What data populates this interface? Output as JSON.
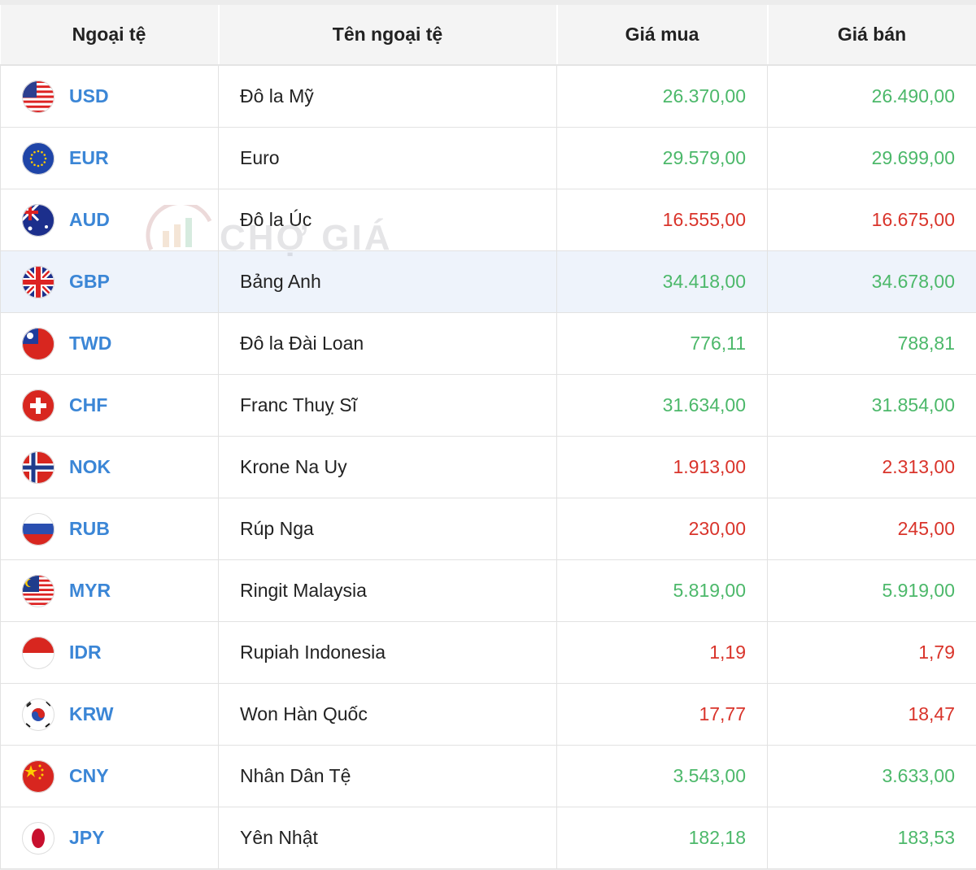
{
  "table": {
    "header": [
      "Ngoại tệ",
      "Tên ngoại tệ",
      "Giá mua",
      "Giá bán"
    ],
    "rows": [
      [
        "USD",
        "Đô la Mỹ",
        "26.370,00",
        "26.490,00"
      ],
      [
        "EUR",
        "Euro",
        "29.579,00",
        "29.699,00"
      ],
      [
        "AUD",
        "Đô la Úc",
        "16.555,00",
        "16.675,00"
      ],
      [
        "GBP",
        "Bảng Anh",
        "34.418,00",
        "34.678,00"
      ],
      [
        "TWD",
        "Đô la Đài Loan",
        "776,11",
        "788,81"
      ],
      [
        "CHF",
        "Franc Thuỵ Sĩ",
        "31.634,00",
        "31.854,00"
      ],
      [
        "NOK",
        "Krone Na Uy",
        "1.913,00",
        "2.313,00"
      ],
      [
        "RUB",
        "Rúp Nga",
        "230,00",
        "245,00"
      ],
      [
        "MYR",
        "Ringit Malaysia",
        "5.819,00",
        "5.919,00"
      ],
      [
        "IDR",
        "Rupiah Indonesia",
        "1,19",
        "1,79"
      ],
      [
        "KRW",
        "Won Hàn Quốc",
        "17,77",
        "18,47"
      ],
      [
        "CNY",
        "Nhân Dân Tệ",
        "3.543,00",
        "3.633,00"
      ],
      [
        "JPY",
        "Yên Nhật",
        "182,18",
        "183,53"
      ]
    ],
    "value_colors": [
      "#4cb86a",
      "#4cb86a",
      "#d9342b",
      "#4cb86a",
      "#4cb86a",
      "#4cb86a",
      "#d9342b",
      "#d9342b",
      "#4cb86a",
      "#d9342b",
      "#d9342b",
      "#4cb86a",
      "#4cb86a"
    ],
    "highlighted_row": 3
  },
  "watermark": "CHỢ GIÁ"
}
